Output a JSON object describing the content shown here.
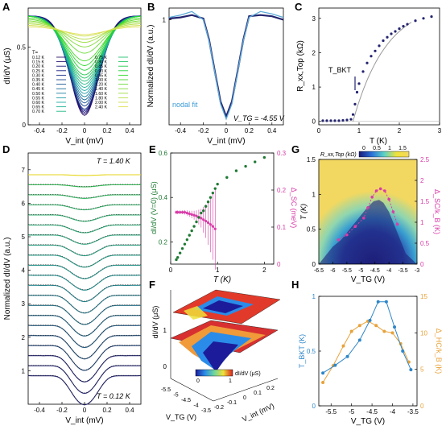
{
  "figure": {
    "panel_letters": [
      "A",
      "B",
      "C",
      "D",
      "E",
      "F",
      "G",
      "H"
    ]
  },
  "panel_a": {
    "title": "A",
    "ylabel": "dI/dV (μS)",
    "xlabel": "V_int (mV)",
    "xticks": [
      "-0.4",
      "-0.2",
      "0",
      "0.2",
      "0.4"
    ],
    "yticks": [
      "0",
      "0.5"
    ],
    "legend_title": "T=",
    "legend_left": [
      "0.12 K",
      "0.15 K",
      "0.20 K",
      "0.25 K",
      "0.30 K",
      "0.35 K",
      "0.40 K",
      "0.45 K",
      "0.50 K",
      "0.55 K",
      "0.60 K",
      "0.65 K",
      "0.70 K"
    ],
    "legend_right": [
      "0.75 K",
      "0.80 K",
      "0.85 K",
      "0.90 K",
      "0.95 K",
      "1.00 K",
      "1.20 K",
      "1.40 K",
      "1.60 K",
      "1.80 K",
      "2.00 K",
      "2.40 K"
    ]
  },
  "panel_b": {
    "title": "B",
    "ylabel": "Normalized dI/dV (a.u.)",
    "xlabel": "V_int (mV)",
    "xticks": [
      "-0.4",
      "-0.2",
      "0",
      "0.2",
      "0.4"
    ],
    "yticks": [
      "1"
    ],
    "fit_label": "nodal fit",
    "vtg_label": "V_TG = -4.55 V"
  },
  "panel_c": {
    "title": "C",
    "ylabel": "R_xx,Top (kΩ)",
    "xlabel": "T (K)",
    "xticks": [
      "0",
      "1",
      "2",
      "3"
    ],
    "yticks": [
      "0",
      "1",
      "2",
      "3"
    ],
    "tbkt_label": "T_BKT"
  },
  "panel_d": {
    "title": "D",
    "ylabel": "Normalized dI/dV (a.u.)",
    "xlabel": "V_int (mV)",
    "xticks": [
      "-0.4",
      "-0.2",
      "0",
      "0.2",
      "0.4"
    ],
    "yticks": [
      "1",
      "2",
      "3",
      "4",
      "5",
      "6",
      "7"
    ],
    "top_label": "T = 1.40 K",
    "bottom_label": "T = 0.12 K"
  },
  "panel_e": {
    "title": "E",
    "ylabel_left": "dI/dV (V=0) (μS)",
    "ylabel_right": "Δ_SC (meV)",
    "xlabel": "T (K)",
    "xticks": [
      "0",
      "1",
      "2"
    ],
    "yticks_left": [
      "0.2",
      "0.4",
      "0.6"
    ],
    "yticks_right": [
      "0",
      "0.1",
      "0.2",
      "0.3"
    ]
  },
  "panel_f": {
    "title": "F",
    "zlabel": "dI/dV (μS)",
    "xlabel": "V_TG (V)",
    "ylabel": "V_int (mV)",
    "colorbar_label": "dI/dV (μS)",
    "colorbar_ticks": [
      "0",
      "1"
    ],
    "vtg_ticks": [
      "-5.5",
      "-5",
      "-4.5",
      "-4",
      "-3.5"
    ],
    "vint_ticks": [
      "-0.2",
      "-0.1",
      "0",
      "0.1",
      "0.2"
    ],
    "z_ticks": [
      "0",
      "1"
    ]
  },
  "panel_g": {
    "title": "G",
    "ylabel_left": "T (K)",
    "ylabel_right": "Δ_SC/k_B (K)",
    "xlabel": "V_TG (V)",
    "colorbar_label": "R_xx,Top (kΩ)",
    "colorbar_ticks": [
      "0",
      "0.5",
      "1",
      "1.5"
    ],
    "xticks": [
      "-6.5",
      "-6",
      "-5.5",
      "-5",
      "-4.5",
      "-4",
      "-3.5",
      "-3"
    ],
    "yticks_left": [
      "0",
      "0.5",
      "1",
      "1.5"
    ],
    "yticks_right": [
      "0",
      "0.5",
      "1",
      "1.5",
      "2",
      "2.5"
    ]
  },
  "panel_h": {
    "title": "H",
    "ylabel_left": "T_BKT (K)",
    "ylabel_right": "Δ_HC/k_B (K)",
    "xlabel": "V_TG (V)",
    "xticks": [
      "-5.5",
      "-5",
      "-4.5",
      "-4",
      "-3.5"
    ],
    "yticks_left": [
      "0",
      "0.5",
      "1"
    ],
    "yticks_right": [
      "0",
      "5",
      "10",
      "15"
    ]
  },
  "colors": {
    "navy": "#23246e",
    "blue_fit": "#5aaad8",
    "green": "#1e7a33",
    "magenta": "#d83ca8",
    "panel_h_blue": "#2e86c8",
    "panel_h_orange": "#e8a23a",
    "yellow_line": "#e6d619"
  },
  "chart_data": [
    {
      "panel": "A",
      "type": "line",
      "xlabel": "V_int (mV)",
      "ylabel": "dI/dV (μS)",
      "xlim": [
        -0.5,
        0.5
      ],
      "ylim": [
        0,
        0.75
      ],
      "note_series": "25 temperature traces; zero-bias value rises with T",
      "series_zero_bias": [
        {
          "name": "0.12 K",
          "v0": 0.06,
          "plateau": 0.7
        },
        {
          "name": "0.15 K",
          "v0": 0.07,
          "plateau": 0.7
        },
        {
          "name": "0.20 K",
          "v0": 0.08,
          "plateau": 0.7
        },
        {
          "name": "0.25 K",
          "v0": 0.09,
          "plateau": 0.7
        },
        {
          "name": "0.30 K",
          "v0": 0.1,
          "plateau": 0.7
        },
        {
          "name": "0.35 K",
          "v0": 0.12,
          "plateau": 0.7
        },
        {
          "name": "0.40 K",
          "v0": 0.14,
          "plateau": 0.7
        },
        {
          "name": "0.45 K",
          "v0": 0.16,
          "plateau": 0.7
        },
        {
          "name": "0.50 K",
          "v0": 0.18,
          "plateau": 0.7
        },
        {
          "name": "0.55 K",
          "v0": 0.2,
          "plateau": 0.7
        },
        {
          "name": "0.60 K",
          "v0": 0.22,
          "plateau": 0.7
        },
        {
          "name": "0.65 K",
          "v0": 0.24,
          "plateau": 0.7
        },
        {
          "name": "0.70 K",
          "v0": 0.26,
          "plateau": 0.7
        },
        {
          "name": "0.75 K",
          "v0": 0.28,
          "plateau": 0.7
        },
        {
          "name": "0.80 K",
          "v0": 0.3,
          "plateau": 0.7
        },
        {
          "name": "0.85 K",
          "v0": 0.32,
          "plateau": 0.7
        },
        {
          "name": "0.90 K",
          "v0": 0.35,
          "plateau": 0.7
        },
        {
          "name": "0.95 K",
          "v0": 0.38,
          "plateau": 0.7
        },
        {
          "name": "1.00 K",
          "v0": 0.41,
          "plateau": 0.69
        },
        {
          "name": "1.20 K",
          "v0": 0.46,
          "plateau": 0.68
        },
        {
          "name": "1.40 K",
          "v0": 0.5,
          "plateau": 0.67
        },
        {
          "name": "1.60 K",
          "v0": 0.53,
          "plateau": 0.66
        },
        {
          "name": "1.80 K",
          "v0": 0.55,
          "plateau": 0.65
        },
        {
          "name": "2.00 K",
          "v0": 0.57,
          "plateau": 0.64
        },
        {
          "name": "2.40 K",
          "v0": 0.58,
          "plateau": 0.63
        }
      ]
    },
    {
      "panel": "B",
      "type": "line",
      "xlabel": "V_int (mV)",
      "ylabel": "Normalized dI/dV (a.u.)",
      "xlim": [
        -0.5,
        0.5
      ],
      "ylim": [
        0.1,
        1.1
      ],
      "x": [
        -0.5,
        -0.4,
        -0.3,
        -0.2,
        -0.15,
        -0.1,
        -0.05,
        0,
        0.05,
        0.1,
        0.15,
        0.2,
        0.3,
        0.4,
        0.5
      ],
      "series": [
        {
          "name": "nodal fit",
          "values": [
            1.02,
            1.04,
            1.07,
            1.0,
            0.82,
            0.55,
            0.28,
            0.15,
            0.28,
            0.55,
            0.82,
            1.02,
            1.07,
            1.05,
            1.02
          ]
        },
        {
          "name": "",
          "values": [
            1.01,
            1.02,
            1.04,
            1.01,
            0.83,
            0.56,
            0.3,
            0.17,
            0.3,
            0.56,
            0.83,
            1.03,
            1.04,
            1.03,
            1.0
          ]
        }
      ]
    },
    {
      "panel": "C",
      "type": "scatter",
      "xlabel": "T (K)",
      "ylabel": "R_xx,Top (kΩ)",
      "xlim": [
        0,
        3
      ],
      "ylim": [
        -0.1,
        3.3
      ],
      "x": [
        0.1,
        0.2,
        0.3,
        0.4,
        0.5,
        0.6,
        0.7,
        0.8,
        0.85,
        0.9,
        0.95,
        1.0,
        1.1,
        1.2,
        1.3,
        1.4,
        1.5,
        1.6,
        1.7,
        1.8,
        1.9,
        2.0,
        2.1,
        2.2,
        2.4,
        2.6,
        2.8
      ],
      "values": [
        0.02,
        0.02,
        0.02,
        0.02,
        0.02,
        0.03,
        0.04,
        0.06,
        0.2,
        0.5,
        0.85,
        1.1,
        1.45,
        1.7,
        1.9,
        2.05,
        2.2,
        2.35,
        2.45,
        2.55,
        2.62,
        2.7,
        2.77,
        2.83,
        2.93,
        3.0,
        3.05
      ],
      "tbkt": 0.9
    },
    {
      "panel": "D",
      "type": "line",
      "xlabel": "V_int (mV)",
      "ylabel": "Normalized dI/dV (a.u.)",
      "xlim": [
        -0.5,
        0.5
      ],
      "ylim": [
        0,
        7.5
      ],
      "note_series": "21 waterfall traces offset by 0.33, dip depth decreasing with temperature from 0.12 K to 1.40 K"
    },
    {
      "panel": "E",
      "type": "scatter",
      "xlabel": "T (K)",
      "xlim": [
        0,
        2.2
      ],
      "series": [
        {
          "name": "",
          "axis": "left",
          "ylim": [
            0.1,
            0.6
          ],
          "x": [
            0.12,
            0.15,
            0.2,
            0.25,
            0.3,
            0.35,
            0.4,
            0.45,
            0.5,
            0.55,
            0.6,
            0.65,
            0.7,
            0.75,
            0.8,
            0.85,
            0.9,
            0.95,
            1.0,
            1.2,
            1.4,
            1.6,
            1.8,
            2.0
          ],
          "values": [
            0.12,
            0.13,
            0.15,
            0.17,
            0.19,
            0.21,
            0.23,
            0.25,
            0.27,
            0.29,
            0.31,
            0.33,
            0.34,
            0.36,
            0.38,
            0.4,
            0.42,
            0.44,
            0.46,
            0.49,
            0.52,
            0.54,
            0.56,
            0.58
          ]
        },
        {
          "name": "",
          "axis": "right",
          "ylim": [
            0,
            0.3
          ],
          "x": [
            0.12,
            0.15,
            0.2,
            0.25,
            0.3,
            0.35,
            0.4,
            0.45,
            0.5,
            0.55,
            0.6,
            0.65,
            0.7,
            0.75,
            0.8,
            0.85,
            0.9,
            0.95
          ],
          "values": [
            0.14,
            0.14,
            0.14,
            0.14,
            0.14,
            0.138,
            0.136,
            0.134,
            0.132,
            0.13,
            0.127,
            0.124,
            0.12,
            0.116,
            0.112,
            0.107,
            0.102,
            0.095
          ],
          "err": [
            0.005,
            0.005,
            0.005,
            0.005,
            0.006,
            0.007,
            0.008,
            0.01,
            0.012,
            0.015,
            0.02,
            0.025,
            0.035,
            0.045,
            0.06,
            0.075,
            0.09,
            0.11
          ]
        }
      ]
    },
    {
      "panel": "G",
      "type": "heatmap",
      "xlabel": "V_TG (V)",
      "ylabel": "T (K)",
      "xlim": [
        -6.5,
        -3
      ],
      "ylim": [
        0,
        1.5
      ],
      "colorbar_range": [
        0,
        1.8
      ],
      "dome_x": [
        -6.0,
        -5.7,
        -5.4,
        -5.1,
        -4.8,
        -4.55,
        -4.35,
        -4.2,
        -4.0,
        -3.8,
        -3.6,
        -3.4
      ],
      "dome_T": [
        0.25,
        0.35,
        0.5,
        0.65,
        0.8,
        0.9,
        0.92,
        0.88,
        0.75,
        0.55,
        0.35,
        0.15
      ],
      "overlay_points_x": [
        -5.8,
        -5.5,
        -5.2,
        -4.9,
        -4.75,
        -4.6,
        -4.45,
        -4.3,
        -4.15,
        -4.0,
        -3.85,
        -3.7
      ],
      "overlay_points_deltaK": [
        0.58,
        0.7,
        0.9,
        1.1,
        1.35,
        1.6,
        1.75,
        1.8,
        1.75,
        1.55,
        1.25,
        0.95
      ]
    },
    {
      "panel": "H",
      "type": "line",
      "xlabel": "V_TG (V)",
      "xlim": [
        -5.8,
        -3.4
      ],
      "series": [
        {
          "name": "",
          "axis": "left",
          "ylim": [
            0,
            1
          ],
          "x": [
            -5.7,
            -5.4,
            -5.1,
            -4.8,
            -4.55,
            -4.35,
            -4.15,
            -3.95,
            -3.75,
            -3.55
          ],
          "values": [
            0.3,
            0.37,
            0.45,
            0.6,
            0.78,
            0.95,
            0.95,
            0.72,
            0.5,
            0.33
          ]
        },
        {
          "name": "",
          "axis": "right",
          "ylim": [
            0,
            15
          ],
          "x": [
            -5.7,
            -5.45,
            -5.2,
            -5.0,
            -4.8,
            -4.6,
            -4.4,
            -4.2,
            -4.0,
            -3.8,
            -3.6
          ],
          "values": [
            3.2,
            5.5,
            8.2,
            10.2,
            11.0,
            11.6,
            11.0,
            10.2,
            10.0,
            8.5,
            6.0
          ]
        }
      ]
    }
  ]
}
